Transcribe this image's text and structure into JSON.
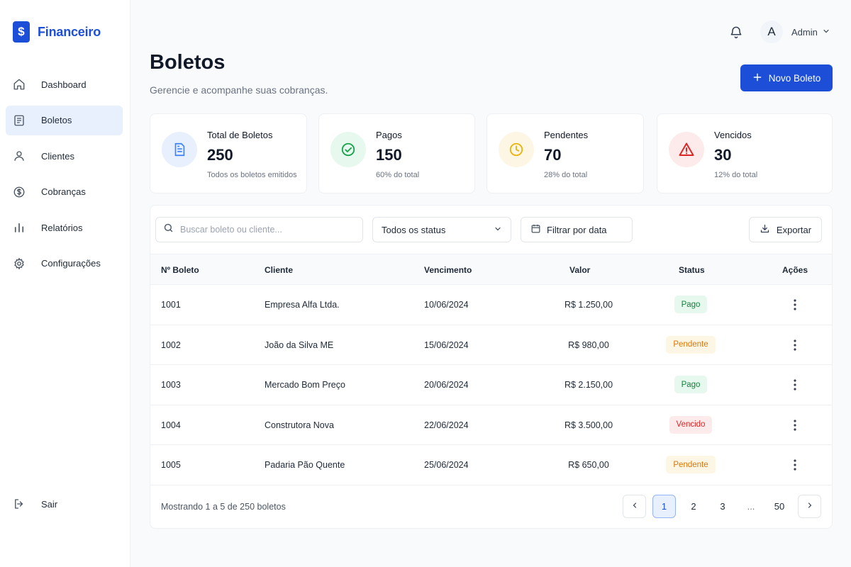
{
  "brand": {
    "logo_glyph": "$",
    "name": "Financeiro",
    "color": "#1d4ed8"
  },
  "sidebar": {
    "items": [
      {
        "label": "Dashboard",
        "icon": "home-icon",
        "active": false
      },
      {
        "label": "Boletos",
        "icon": "document-icon",
        "active": true
      },
      {
        "label": "Clientes",
        "icon": "user-icon",
        "active": false
      },
      {
        "label": "Cobranças",
        "icon": "dollar-circle-icon",
        "active": false
      },
      {
        "label": "Relatórios",
        "icon": "bar-chart-icon",
        "active": false
      },
      {
        "label": "Configurações",
        "icon": "gear-icon",
        "active": false
      }
    ],
    "logout_label": "Sair"
  },
  "header": {
    "avatar_initial": "A",
    "user_name": "Admin",
    "title": "Boletos",
    "subtitle": "Gerencie e acompanhe suas cobranças.",
    "new_button_label": "Novo Boleto"
  },
  "cards": [
    {
      "title": "Total de Boletos",
      "value": "250",
      "sub": "Todos os boletos emitidos",
      "icon": "document-icon",
      "accent": "#3b82f6"
    },
    {
      "title": "Pagos",
      "value": "150",
      "sub": "60% do total",
      "icon": "check-circle-icon",
      "accent": "#16a34a"
    },
    {
      "title": "Pendentes",
      "value": "70",
      "sub": "28% do total",
      "icon": "clock-icon",
      "accent": "#eab308"
    },
    {
      "title": "Vencidos",
      "value": "30",
      "sub": "12% do total",
      "icon": "warning-icon",
      "accent": "#dc2626"
    }
  ],
  "filters": {
    "search_placeholder": "Buscar boleto ou cliente...",
    "status_selected": "Todos os status",
    "date_label": "Filtrar por data",
    "export_label": "Exportar"
  },
  "table": {
    "columns": [
      "Nº Boleto",
      "Cliente",
      "Vencimento",
      "Valor",
      "Status",
      "Ações"
    ],
    "rows": [
      {
        "numero": "1001",
        "cliente": "Empresa Alfa Ltda.",
        "vencimento": "10/06/2024",
        "valor": "R$ 1.250,00",
        "status": "Pago"
      },
      {
        "numero": "1002",
        "cliente": "João da Silva ME",
        "vencimento": "15/06/2024",
        "valor": "R$ 980,00",
        "status": "Pendente"
      },
      {
        "numero": "1003",
        "cliente": "Mercado Bom Preço",
        "vencimento": "20/06/2024",
        "valor": "R$ 2.150,00",
        "status": "Pago"
      },
      {
        "numero": "1004",
        "cliente": "Construtora Nova",
        "vencimento": "22/06/2024",
        "valor": "R$ 3.500,00",
        "status": "Vencido"
      },
      {
        "numero": "1005",
        "cliente": "Padaria Pão Quente",
        "vencimento": "25/06/2024",
        "valor": "R$ 650,00",
        "status": "Pendente"
      }
    ]
  },
  "status_colors": {
    "Pago": {
      "bg": "#e7f8ee",
      "fg": "#15803d"
    },
    "Pendente": {
      "bg": "#fef6e4",
      "fg": "#d97706"
    },
    "Vencido": {
      "bg": "#fdeaea",
      "fg": "#dc2626"
    }
  },
  "pagination": {
    "showing_text": "Mostrando 1 a 5 de 250 boletos",
    "pages": [
      "1",
      "2",
      "3",
      "...",
      "50"
    ],
    "current_page": "1"
  }
}
